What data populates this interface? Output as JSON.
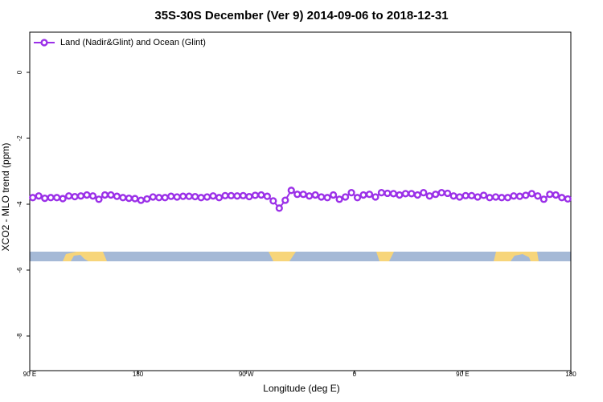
{
  "chart_data": {
    "type": "line",
    "title": "35S-30S December (Ver 9)   2014-09-06 to 2018-12-31",
    "xlabel": "Longitude (deg E)",
    "ylabel": "XCO2 - MLO trend (ppm)",
    "x": [
      92.5,
      97.5,
      102.5,
      107.5,
      112.5,
      117.5,
      122.5,
      127.5,
      132.5,
      137.5,
      142.5,
      147.5,
      152.5,
      157.5,
      162.5,
      167.5,
      172.5,
      177.5,
      182.5,
      187.5,
      192.5,
      197.5,
      202.5,
      207.5,
      212.5,
      217.5,
      222.5,
      227.5,
      232.5,
      237.5,
      242.5,
      247.5,
      252.5,
      257.5,
      262.5,
      267.5,
      272.5,
      277.5,
      282.5,
      287.5,
      292.5,
      297.5,
      302.5,
      307.5,
      312.5,
      317.5,
      322.5,
      327.5,
      332.5,
      337.5,
      342.5,
      347.5,
      352.5,
      357.5,
      362.5,
      367.5,
      372.5,
      377.5,
      382.5,
      387.5,
      392.5,
      397.5,
      402.5,
      407.5,
      412.5,
      417.5,
      422.5,
      427.5,
      432.5,
      437.5,
      442.5,
      447.5,
      452.5,
      457.5,
      462.5,
      467.5,
      472.5,
      477.5,
      482.5,
      487.5,
      492.5,
      497.5,
      502.5,
      507.5,
      512.5,
      517.5,
      522.5,
      527.5,
      532.5,
      537.5
    ],
    "series": [
      {
        "name": "Land (Nadir&Glint) and Ocean (Glint)",
        "color": "#9b30e8",
        "values": [
          -3.8,
          -3.75,
          -3.82,
          -3.8,
          -3.8,
          -3.83,
          -3.75,
          -3.77,
          -3.75,
          -3.72,
          -3.75,
          -3.85,
          -3.72,
          -3.72,
          -3.76,
          -3.8,
          -3.82,
          -3.83,
          -3.88,
          -3.84,
          -3.78,
          -3.8,
          -3.8,
          -3.76,
          -3.78,
          -3.76,
          -3.76,
          -3.77,
          -3.8,
          -3.78,
          -3.75,
          -3.8,
          -3.74,
          -3.74,
          -3.75,
          -3.74,
          -3.77,
          -3.73,
          -3.72,
          -3.76,
          -3.9,
          -4.12,
          -3.88,
          -3.58,
          -3.7,
          -3.7,
          -3.75,
          -3.72,
          -3.78,
          -3.8,
          -3.72,
          -3.85,
          -3.78,
          -3.65,
          -3.8,
          -3.72,
          -3.7,
          -3.78,
          -3.65,
          -3.67,
          -3.68,
          -3.72,
          -3.68,
          -3.68,
          -3.72,
          -3.65,
          -3.75,
          -3.7,
          -3.65,
          -3.67,
          -3.75,
          -3.78,
          -3.74,
          -3.74,
          -3.78,
          -3.73,
          -3.8,
          -3.78,
          -3.8,
          -3.8,
          -3.75,
          -3.76,
          -3.73,
          -3.68,
          -3.75,
          -3.85,
          -3.7,
          -3.72,
          -3.8,
          -3.84
        ]
      }
    ],
    "xlim": [
      90,
      540
    ],
    "xticks": [
      {
        "value": 90,
        "label": "90 E"
      },
      180,
      {
        "value": 270,
        "label": "90 W"
      },
      {
        "value": 360,
        "label": "0"
      },
      {
        "value": 450,
        "label": "90 E"
      },
      {
        "value": 540,
        "label": "180"
      }
    ],
    "ylim": [
      -9.05,
      1.22
    ],
    "yticks": [
      0,
      -2,
      -4,
      -6,
      -8
    ],
    "legend": "top-left"
  }
}
